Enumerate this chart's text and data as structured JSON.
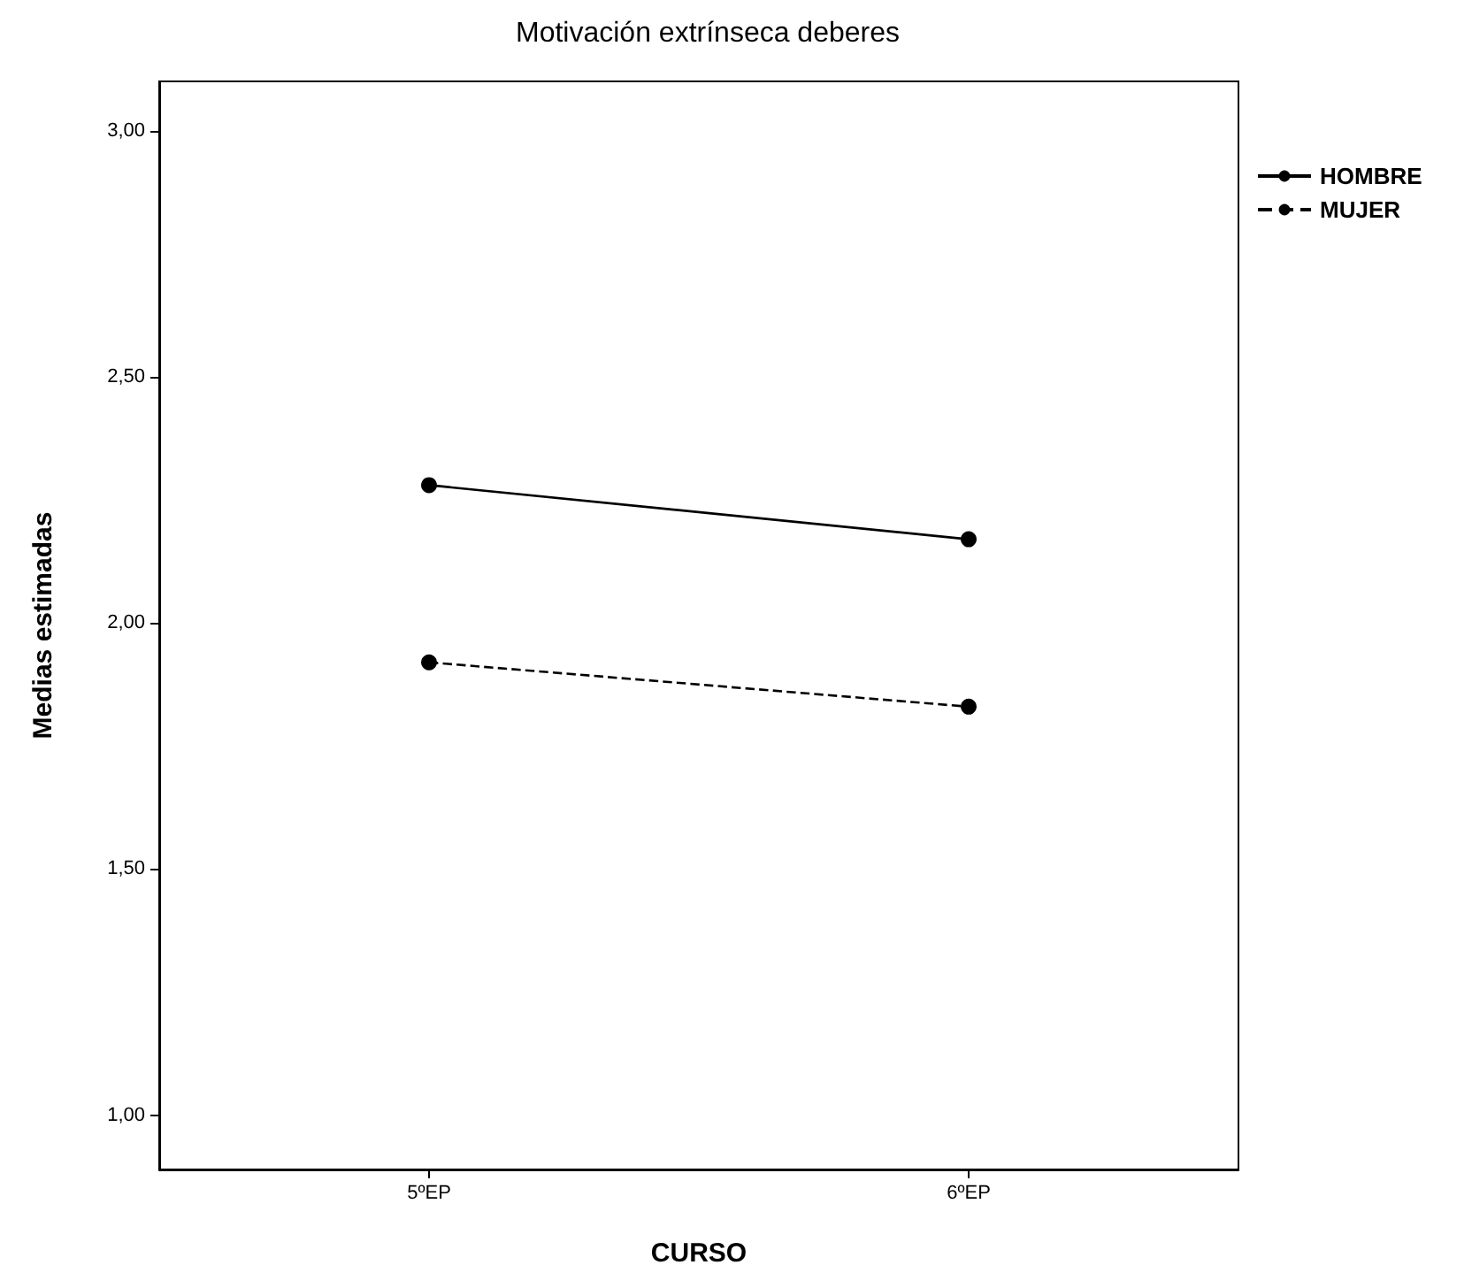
{
  "chart_data": {
    "type": "line",
    "title": "Motivación extrínseca deberes",
    "xlabel": "CURSO",
    "ylabel": "Medias estimadas",
    "categories": [
      "5ºEP",
      "6ºEP"
    ],
    "series": [
      {
        "name": "HOMBRE",
        "color": "#000000",
        "values": [
          2.28,
          2.17
        ],
        "line_style": "solid"
      },
      {
        "name": "MUJER",
        "color": "#000000",
        "values": [
          1.92,
          1.83
        ],
        "line_style": "dashed"
      }
    ],
    "ylim": [
      0.89,
      3.1
    ],
    "yticks": [
      {
        "value": 1,
        "label": "1,00"
      },
      {
        "value": 1.5,
        "label": "1,50"
      },
      {
        "value": 2,
        "label": "2,00"
      },
      {
        "value": 2.5,
        "label": "2,50"
      },
      {
        "value": 3,
        "label": "3,00"
      }
    ],
    "marker": "circle",
    "legend": "top right",
    "grid": false
  }
}
